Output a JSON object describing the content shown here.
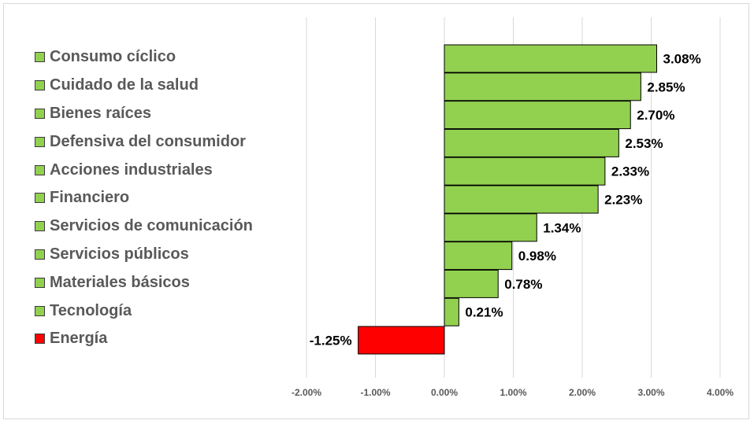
{
  "chart_data": {
    "type": "bar",
    "orientation": "horizontal",
    "categories": [
      "Consumo cíclico",
      "Cuidado de la salud",
      "Bienes raíces",
      "Defensiva del consumidor",
      "Acciones industriales",
      "Financiero",
      "Servicios de comunicación",
      "Servicios públicos",
      "Materiales básicos",
      "Tecnología",
      "Energía"
    ],
    "values": [
      3.08,
      2.85,
      2.7,
      2.53,
      2.33,
      2.23,
      1.34,
      0.98,
      0.78,
      0.21,
      -1.25
    ],
    "data_labels": [
      "3.08%",
      "2.85%",
      "2.70%",
      "2.53%",
      "2.33%",
      "2.23%",
      "1.34%",
      "0.98%",
      "0.78%",
      "0.21%",
      "-1.25%"
    ],
    "xlim": [
      -2,
      4
    ],
    "xticks": [
      -2,
      -1,
      0,
      1,
      2,
      3,
      4
    ],
    "xtick_labels": [
      "-2.00%",
      "-1.00%",
      "0.00%",
      "1.00%",
      "2.00%",
      "3.00%",
      "4.00%"
    ],
    "grid": true,
    "legend_position": "left",
    "colors": {
      "positive": "#92d050",
      "negative": "#ff0000",
      "bar_border": "#000000",
      "grid": "#d9d9d9",
      "axis_label_text": "#595959",
      "data_label_text": "#000000"
    },
    "title": "",
    "xlabel": "",
    "ylabel": ""
  }
}
